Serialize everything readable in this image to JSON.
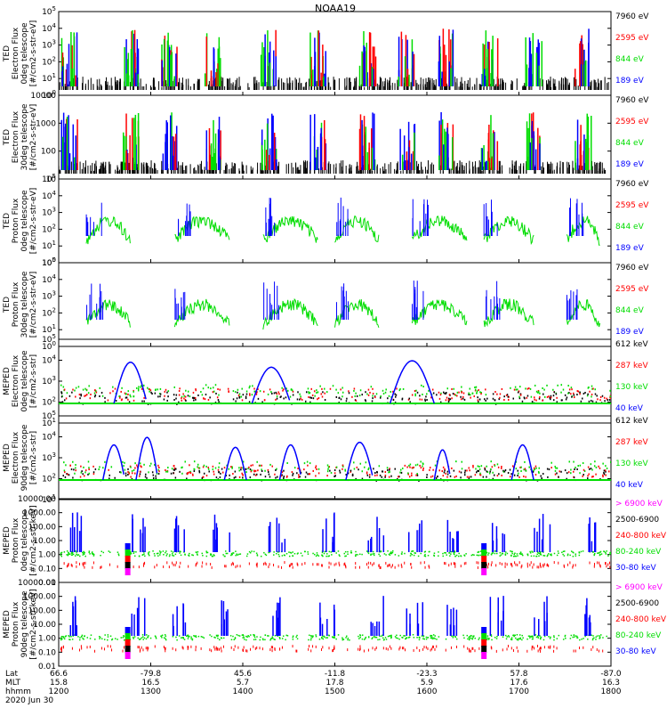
{
  "title": "NOAA19",
  "chart_data": [
    {
      "type": "scatter",
      "ylabel": [
        "TED",
        "Electron Flux",
        "0deg telescope",
        "[#/cm2-s-str-eV]"
      ],
      "yticks": [
        "10^0",
        "10^1",
        "10^2",
        "10^3",
        "10^4",
        "10^5"
      ],
      "ylim": [
        1,
        100000
      ],
      "legend": [
        {
          "label": "7960 eV",
          "color": "#000000"
        },
        {
          "label": "2595 eV",
          "color": "#ff0000"
        },
        {
          "label": "844 eV",
          "color": "#00dd00"
        },
        {
          "label": "189 eV",
          "color": "#0000ff"
        }
      ]
    },
    {
      "type": "scatter",
      "ylabel": [
        "TED",
        "Electron Flux",
        "30deg telescope",
        "[#/cm2-s-str-eV]"
      ],
      "yticks": [
        "10",
        "100",
        "1000",
        "10000"
      ],
      "ylim": [
        3,
        30000
      ],
      "legend": [
        {
          "label": "7960 eV",
          "color": "#000000"
        },
        {
          "label": "2595 eV",
          "color": "#ff0000"
        },
        {
          "label": "844 eV",
          "color": "#00dd00"
        },
        {
          "label": "189 eV",
          "color": "#0000ff"
        }
      ]
    },
    {
      "type": "scatter",
      "ylabel": [
        "TED",
        "Proton Flux",
        "0deg telescope",
        "[#/cm2-s-str-eV]"
      ],
      "yticks": [
        "10^0",
        "10^1",
        "10^2",
        "10^3",
        "10^4",
        "10^5"
      ],
      "ylim": [
        1,
        100000
      ],
      "legend": [
        {
          "label": "7960 eV",
          "color": "#000000"
        },
        {
          "label": "2595 eV",
          "color": "#ff0000"
        },
        {
          "label": "844 eV",
          "color": "#00dd00"
        },
        {
          "label": "189 eV",
          "color": "#0000ff"
        }
      ]
    },
    {
      "type": "scatter",
      "ylabel": [
        "TED",
        "Proton Flux",
        "30deg telescope",
        "[#/cm2-s-str-eV]"
      ],
      "yticks": [
        "10^0",
        "10^1",
        "10^2",
        "10^3",
        "10^4",
        "10^5"
      ],
      "ylim": [
        1,
        100000
      ],
      "legend": [
        {
          "label": "7960 eV",
          "color": "#000000"
        },
        {
          "label": "2595 eV",
          "color": "#ff0000"
        },
        {
          "label": "844 eV",
          "color": "#00dd00"
        },
        {
          "label": "189 eV",
          "color": "#0000ff"
        }
      ]
    },
    {
      "type": "scatter",
      "ylabel": [
        "MEPED",
        "Electron Flux",
        "0deg telescope",
        "[#/cm2-s-str]"
      ],
      "yticks": [
        "10^1",
        "10^2",
        "10^3",
        "10^4",
        "10^5"
      ],
      "ylim": [
        10,
        100000
      ],
      "legend": [
        {
          "label": "612 keV",
          "color": "#000000"
        },
        {
          "label": "287 keV",
          "color": "#ff0000"
        },
        {
          "label": "130 keV",
          "color": "#00dd00"
        },
        {
          "label": "40 keV",
          "color": "#0000ff"
        }
      ]
    },
    {
      "type": "scatter",
      "ylabel": [
        "MEPED",
        "Electron Flux",
        "90deg telescope",
        "[#/cm2-s-str]"
      ],
      "yticks": [
        "10^1",
        "10^2",
        "10^3",
        "10^4",
        "10^5"
      ],
      "ylim": [
        10,
        100000
      ],
      "legend": [
        {
          "label": "612 keV",
          "color": "#000000"
        },
        {
          "label": "287 keV",
          "color": "#ff0000"
        },
        {
          "label": "130 keV",
          "color": "#00dd00"
        },
        {
          "label": "40 keV",
          "color": "#0000ff"
        }
      ]
    },
    {
      "type": "scatter",
      "ylabel": [
        "MEPED",
        "Proton Flux",
        "0deg telescope",
        "[#/cm2-s-str-keV]"
      ],
      "yticks": [
        "0.01",
        "0.10",
        "1.00",
        "10.00",
        "100.00",
        "1000.00",
        "10000.00"
      ],
      "ylim": [
        0.01,
        10000
      ],
      "legend": [
        {
          "label": "> 6900 keV",
          "color": "#ff00ff"
        },
        {
          "label": "2500-6900",
          "color": "#000000"
        },
        {
          "label": "240-800 keV",
          "color": "#ff0000"
        },
        {
          "label": "80-240 keV",
          "color": "#00dd00"
        },
        {
          "label": "30-80 keV",
          "color": "#0000ff"
        }
      ]
    },
    {
      "type": "scatter",
      "ylabel": [
        "MEPED",
        "Proton Flux",
        "90deg telescope",
        "[#/cm2-s-str-keV]"
      ],
      "yticks": [
        "0.01",
        "0.10",
        "1.00",
        "10.00",
        "100.00",
        "1000.00",
        "10000.00"
      ],
      "ylim": [
        0.01,
        10000
      ],
      "legend": [
        {
          "label": "> 6900 keV",
          "color": "#ff00ff"
        },
        {
          "label": "2500-6900",
          "color": "#000000"
        },
        {
          "label": "240-800 keV",
          "color": "#ff0000"
        },
        {
          "label": "80-240 keV",
          "color": "#00dd00"
        },
        {
          "label": "30-80 keV",
          "color": "#0000ff"
        }
      ]
    }
  ],
  "xaxis": {
    "row_labels": [
      "Lat",
      "MLT",
      "hhmm"
    ],
    "date": "2020 Jun 30",
    "ticks": [
      {
        "lat": "66.6",
        "mlt": "15.8",
        "hhmm": "1200"
      },
      {
        "lat": "-79.8",
        "mlt": "16.5",
        "hhmm": "1300"
      },
      {
        "lat": "45.6",
        "mlt": "5.7",
        "hhmm": "1400"
      },
      {
        "lat": "-11.8",
        "mlt": "17.8",
        "hhmm": "1500"
      },
      {
        "lat": "-23.3",
        "mlt": "5.9",
        "hhmm": "1600"
      },
      {
        "lat": "57.8",
        "mlt": "17.6",
        "hhmm": "1700"
      },
      {
        "lat": "-87.0",
        "mlt": "16.3",
        "hhmm": "1800"
      }
    ]
  }
}
